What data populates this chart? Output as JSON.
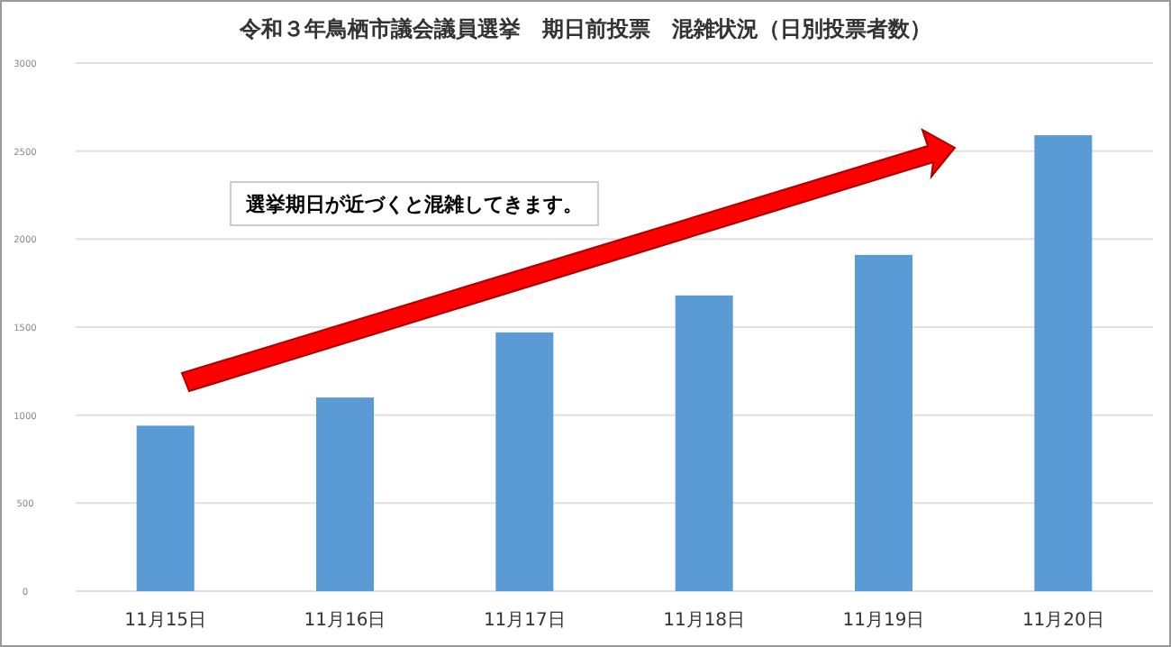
{
  "chart_data": {
    "type": "bar",
    "title": "令和３年鳥栖市議会議員選挙　期日前投票　混雑状況（日別投票者数）",
    "categories": [
      "11月15日",
      "11月16日",
      "11月17日",
      "11月18日",
      "11月19日",
      "11月20日"
    ],
    "values": [
      940,
      1100,
      1470,
      1680,
      1910,
      2590
    ],
    "color": "#5b9bd5",
    "ylim": [
      0,
      3000
    ],
    "yticks": [
      0,
      500,
      1000,
      1500,
      2000,
      2500,
      3000
    ],
    "grid": "y",
    "annotations": [
      "選挙期日が近づくと混雑してきます。"
    ]
  }
}
